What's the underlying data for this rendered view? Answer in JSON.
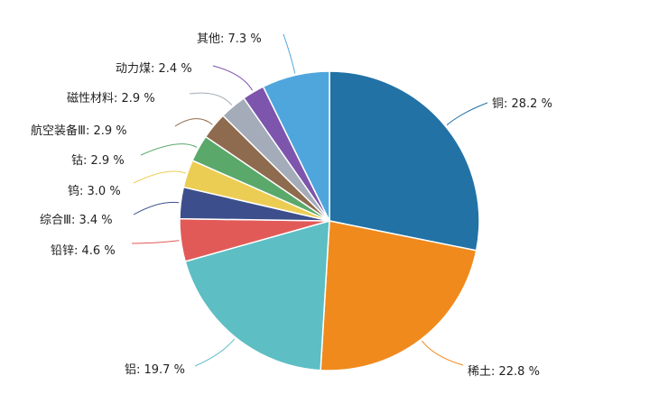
{
  "chart_data": {
    "type": "pie",
    "slices": [
      {
        "name": "铜",
        "value": 28.2,
        "label": "铜: 28.2 %",
        "color": "#2272a6"
      },
      {
        "name": "稀土",
        "value": 22.8,
        "label": "稀土: 22.8 %",
        "color": "#f08a1d"
      },
      {
        "name": "铝",
        "value": 19.7,
        "label": "铝: 19.7 %",
        "color": "#5dbec4"
      },
      {
        "name": "铅锌",
        "value": 4.6,
        "label": "铅锌: 4.6 %",
        "color": "#e25a58"
      },
      {
        "name": "综合Ⅲ",
        "value": 3.4,
        "label": "综合Ⅲ: 3.4 %",
        "color": "#3c4f8c"
      },
      {
        "name": "钨",
        "value": 3.0,
        "label": "钨: 3.0 %",
        "color": "#eccd54"
      },
      {
        "name": "钴",
        "value": 2.9,
        "label": "钴: 2.9 %",
        "color": "#5ba86b"
      },
      {
        "name": "航空装备Ⅲ",
        "value": 2.9,
        "label": "航空装备Ⅲ: 2.9 %",
        "color": "#8e6a4e"
      },
      {
        "name": "磁性材料",
        "value": 2.9,
        "label": "磁性材料: 2.9 %",
        "color": "#a3acb8"
      },
      {
        "name": "动力煤",
        "value": 2.4,
        "label": "动力煤: 2.4 %",
        "color": "#7d55ad"
      },
      {
        "name": "其他",
        "value": 7.3,
        "label": "其他: 7.3 %",
        "color": "#4fa6dc"
      }
    ],
    "start": "12 o'clock",
    "direction": "clockwise",
    "legend": "none"
  }
}
